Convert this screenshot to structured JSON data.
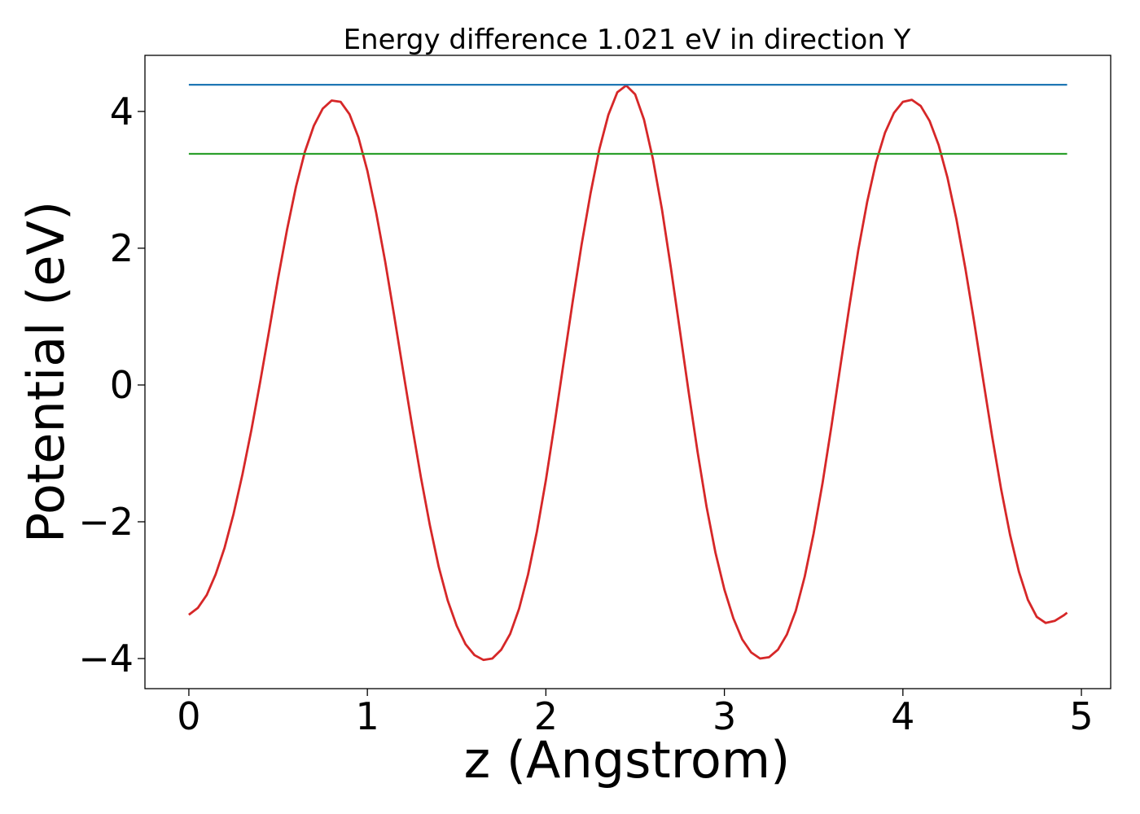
{
  "chart_data": {
    "type": "line",
    "title": "Energy difference 1.021 eV in direction Y",
    "xlabel": "z (Angstrom)",
    "ylabel": "Potential (eV)",
    "xlim": [
      -0.246,
      5.164
    ],
    "ylim": [
      -4.44,
      4.82
    ],
    "xticks": [
      0,
      1,
      2,
      3,
      4,
      5
    ],
    "yticks": [
      -4,
      -2,
      0,
      2,
      4
    ],
    "xtick_labels": [
      "0",
      "1",
      "2",
      "3",
      "4",
      "5"
    ],
    "ytick_labels": [
      "−4",
      "−2",
      "0",
      "2",
      "4"
    ],
    "grid": false,
    "series": [
      {
        "color": "#d62728",
        "x": [
          0.0,
          0.05,
          0.1,
          0.15,
          0.2,
          0.25,
          0.3,
          0.35,
          0.4,
          0.45,
          0.5,
          0.55,
          0.6,
          0.65,
          0.7,
          0.75,
          0.8,
          0.85,
          0.9,
          0.95,
          1.0,
          1.05,
          1.1,
          1.15,
          1.2,
          1.25,
          1.3,
          1.35,
          1.4,
          1.45,
          1.5,
          1.55,
          1.6,
          1.65,
          1.7,
          1.75,
          1.8,
          1.85,
          1.9,
          1.95,
          2.0,
          2.05,
          2.1,
          2.15,
          2.2,
          2.25,
          2.3,
          2.35,
          2.4,
          2.45,
          2.5,
          2.55,
          2.6,
          2.65,
          2.7,
          2.75,
          2.8,
          2.85,
          2.9,
          2.95,
          3.0,
          3.05,
          3.1,
          3.15,
          3.2,
          3.25,
          3.3,
          3.35,
          3.4,
          3.45,
          3.5,
          3.55,
          3.6,
          3.65,
          3.7,
          3.75,
          3.8,
          3.85,
          3.9,
          3.95,
          4.0,
          4.05,
          4.1,
          4.15,
          4.2,
          4.25,
          4.3,
          4.35,
          4.4,
          4.45,
          4.5,
          4.55,
          4.6,
          4.65,
          4.7,
          4.75,
          4.8,
          4.85,
          4.9,
          4.92
        ],
        "y": [
          -3.36,
          -3.26,
          -3.07,
          -2.77,
          -2.38,
          -1.89,
          -1.31,
          -0.66,
          0.05,
          0.8,
          1.56,
          2.27,
          2.9,
          3.41,
          3.79,
          4.04,
          4.16,
          4.14,
          3.96,
          3.62,
          3.13,
          2.51,
          1.8,
          1.02,
          0.21,
          -0.59,
          -1.35,
          -2.05,
          -2.66,
          -3.15,
          -3.52,
          -3.79,
          -3.95,
          -4.02,
          -4.0,
          -3.87,
          -3.64,
          -3.27,
          -2.77,
          -2.14,
          -1.39,
          -0.55,
          0.34,
          1.22,
          2.05,
          2.8,
          3.45,
          3.95,
          4.28,
          4.38,
          4.25,
          3.88,
          3.3,
          2.57,
          1.72,
          0.81,
          -0.11,
          -0.98,
          -1.78,
          -2.45,
          -2.99,
          -3.41,
          -3.72,
          -3.91,
          -4.0,
          -3.98,
          -3.87,
          -3.65,
          -3.3,
          -2.8,
          -2.17,
          -1.43,
          -0.6,
          0.28,
          1.15,
          1.97,
          2.68,
          3.26,
          3.69,
          3.98,
          4.14,
          4.17,
          4.08,
          3.86,
          3.51,
          3.03,
          2.42,
          1.7,
          0.91,
          0.07,
          -0.75,
          -1.52,
          -2.19,
          -2.73,
          -3.14,
          -3.39,
          -3.48,
          -3.45,
          -3.37,
          -3.33
        ]
      },
      {
        "color": "#1f77b4",
        "x": [
          0.0,
          4.92
        ],
        "y": [
          4.39,
          4.39
        ]
      },
      {
        "color": "#2ca02c",
        "x": [
          0.0,
          4.92
        ],
        "y": [
          3.38,
          3.38
        ]
      }
    ]
  }
}
